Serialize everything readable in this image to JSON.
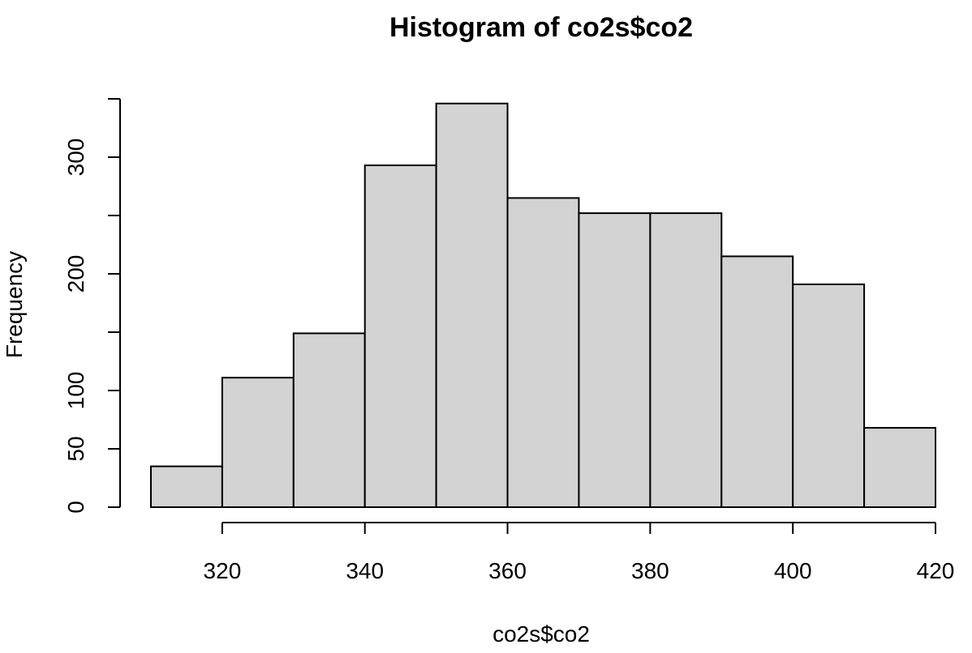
{
  "chart_data": {
    "type": "bar",
    "title": "Histogram of co2s$co2",
    "xlabel": "co2s$co2",
    "ylabel": "Frequency",
    "bin_edges": [
      310,
      320,
      330,
      340,
      350,
      360,
      370,
      380,
      390,
      400,
      410,
      420
    ],
    "values": [
      35,
      111,
      149,
      293,
      346,
      265,
      252,
      252,
      215,
      191,
      68
    ],
    "xlim": [
      310,
      420
    ],
    "ylim": [
      0,
      350
    ],
    "x_ticks": [
      320,
      340,
      360,
      380,
      400,
      420
    ],
    "y_ticks": [
      0,
      50,
      100,
      150,
      200,
      250,
      300,
      350
    ],
    "y_tick_labels": [
      "0",
      "50",
      "100",
      "",
      "200",
      "",
      "300",
      ""
    ],
    "bar_color": "#d3d3d3",
    "grid": false,
    "legend": false
  }
}
